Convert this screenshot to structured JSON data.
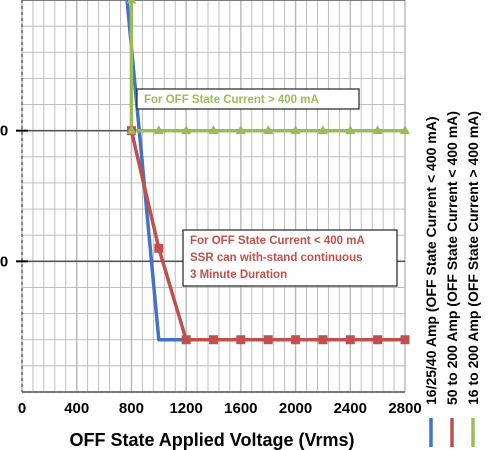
{
  "chart_data": {
    "type": "line",
    "xlabel": "OFF State Applied Voltage (Vrms)",
    "ylabel": "",
    "x_ticks": [
      "0",
      "400",
      "800",
      "1200",
      "1600",
      "2000",
      "2400",
      "2800"
    ],
    "y_tick_labels_visible": [
      "0",
      "0"
    ],
    "xlim": [
      0,
      2800
    ],
    "ylim": [
      0,
      3
    ],
    "grid": true,
    "series": [
      {
        "name": "16/25/40 Amp  (OFF State Current < 400 mA)",
        "color": "#4472c4",
        "marker": "none",
        "x": [
          750,
          1000,
          2800
        ],
        "y": [
          3.2,
          0.4,
          0.4
        ]
      },
      {
        "name": "50 to 200 Amp  (OFF State Current < 400 mA)",
        "color": "#c0504d",
        "marker": "square",
        "x": [
          800,
          1000,
          1200,
          1400,
          1600,
          1800,
          2000,
          2200,
          2400,
          2600,
          2800
        ],
        "y": [
          2.0,
          1.1,
          0.4,
          0.4,
          0.4,
          0.4,
          0.4,
          0.4,
          0.4,
          0.4,
          0.4
        ]
      },
      {
        "name": "16 to 200 Amp  (OFF State Current > 400 mA)",
        "color": "#9bbb59",
        "marker": "triangle",
        "x": [
          800,
          800,
          1000,
          1200,
          1400,
          1600,
          1800,
          2000,
          2200,
          2400,
          2600,
          2800
        ],
        "y": [
          3.0,
          2.0,
          2.0,
          2.0,
          2.0,
          2.0,
          2.0,
          2.0,
          2.0,
          2.0,
          2.0,
          2.0
        ]
      }
    ],
    "annotations": [
      {
        "text": [
          "For OFF State Current > 400 mA"
        ],
        "color": "#9bbb59"
      },
      {
        "text": [
          "For OFF State Current < 400 mA",
          "SSR can with-stand continuous",
          "3 Minute Duration"
        ],
        "color": "#c0504d"
      }
    ]
  },
  "colors": {
    "grid": "#b8b8b8",
    "blue": "#4472c4",
    "red": "#c0504d",
    "green": "#9bbb59"
  }
}
